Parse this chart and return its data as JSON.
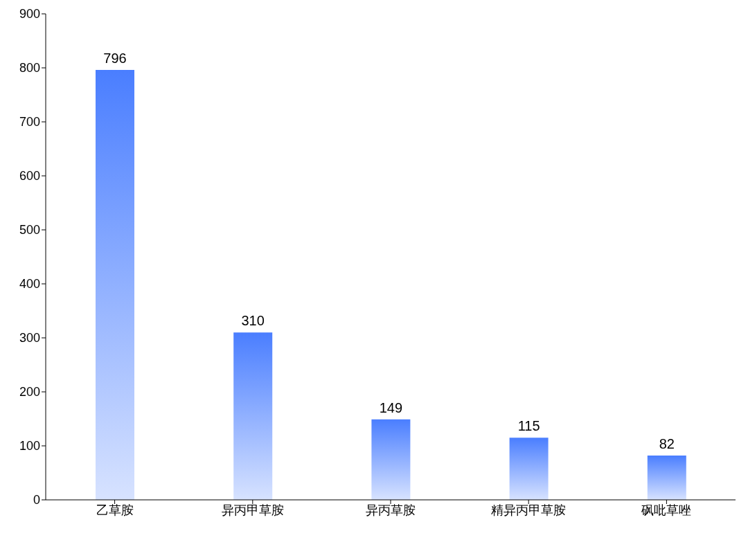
{
  "chart_data": {
    "type": "bar",
    "categories": [
      "乙草胺",
      "异丙甲草胺",
      "异丙草胺",
      "精异丙甲草胺",
      "砜吡草唑"
    ],
    "values": [
      796,
      310,
      149,
      115,
      82
    ],
    "color": "#4a7eff",
    "ylim": [
      0,
      900
    ],
    "yticks": [
      0,
      100,
      200,
      300,
      400,
      500,
      600,
      700,
      800,
      900
    ],
    "grid": false,
    "data_labels": true,
    "legend": false
  }
}
